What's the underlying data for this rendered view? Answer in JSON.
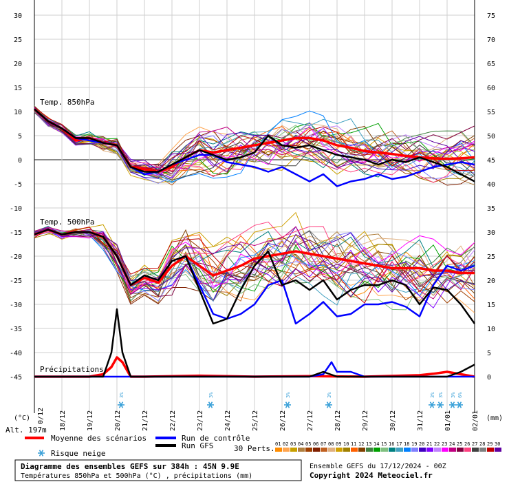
{
  "chart_data": {
    "type": "line",
    "title": "",
    "x_dates": [
      "18/12",
      "19/12",
      "20/12",
      "21/12",
      "22/12",
      "23/12",
      "24/12",
      "25/12",
      "26/12",
      "27/12",
      "28/12",
      "29/12",
      "30/12",
      "31/12",
      "01/01",
      "02/01"
    ],
    "x_label_extra": "0/12",
    "x_range_days": [
      0,
      16
    ],
    "y_left_ticks": [
      30,
      25,
      20,
      15,
      10,
      5,
      0,
      -5,
      -10,
      -15,
      -20,
      -25,
      -30,
      -35,
      -40,
      -45
    ],
    "y_left_range": [
      -45,
      30
    ],
    "y_right_ticks": [
      75,
      70,
      65,
      60,
      55,
      50,
      45,
      40,
      35,
      30,
      25,
      20,
      15,
      10,
      5,
      0
    ],
    "y_right_range": [
      0,
      75
    ],
    "left_axis_unit": "(°C)",
    "right_axis_unit": "(mm)",
    "altitude_label": "Alt. 197m",
    "section_labels": {
      "t850": "Temp. 850hPa",
      "t500": "Temp. 500hPa",
      "precip": "Précipitations"
    },
    "grid": true,
    "reference_line_y": 0,
    "series": [
      {
        "name": "Moyenne des scénarios",
        "color": "#ff0000",
        "panel": "t850",
        "x": [
          0,
          0.5,
          1,
          1.5,
          2,
          2.5,
          3,
          3.5,
          4,
          4.5,
          5,
          5.5,
          6,
          6.5,
          7,
          7.5,
          8,
          8.5,
          9,
          9.5,
          10,
          10.5,
          11,
          11.5,
          12,
          12.5,
          13,
          13.5,
          14,
          14.5,
          15,
          15.5,
          16
        ],
        "values": [
          10.5,
          8,
          6.5,
          4,
          4.5,
          3.5,
          3,
          -1.5,
          -2,
          -2.5,
          -1.5,
          0.5,
          2,
          1.5,
          2,
          2.5,
          3,
          3.5,
          4,
          4.5,
          4.5,
          4,
          3,
          2.5,
          1.8,
          1.5,
          1.2,
          0.8,
          0.5,
          0.3,
          0.2,
          0.3,
          0.5
        ]
      },
      {
        "name": "Run de contrôle",
        "color": "#0000ff",
        "panel": "t850",
        "x": [
          0,
          0.5,
          1,
          1.5,
          2,
          2.5,
          3,
          3.5,
          4,
          4.5,
          5,
          5.5,
          6,
          6.5,
          7,
          7.5,
          8,
          8.5,
          9,
          9.5,
          10,
          10.5,
          11,
          11.5,
          12,
          12.5,
          13,
          13.5,
          14,
          14.5,
          15,
          15.5,
          16
        ],
        "values": [
          10.5,
          8,
          6.5,
          4.5,
          4,
          3.5,
          3,
          -1.5,
          -3,
          -2.5,
          -1,
          0,
          1,
          1,
          -0.5,
          -1,
          -1.5,
          -2.5,
          -1.5,
          -3,
          -4.5,
          -3,
          -5.5,
          -4.5,
          -4,
          -3,
          -4,
          -3.5,
          -2.5,
          -1.5,
          -1,
          -0.5,
          -1
        ]
      },
      {
        "name": "Run GFS",
        "color": "#000000",
        "panel": "t850",
        "x": [
          0,
          0.5,
          1,
          1.5,
          2,
          2.5,
          3,
          3.5,
          4,
          4.5,
          5,
          5.5,
          6,
          6.5,
          7,
          7.5,
          8,
          8.5,
          9,
          9.5,
          10,
          10.5,
          11,
          11.5,
          12,
          12.5,
          13,
          13.5,
          14,
          14.5,
          15,
          15.5,
          16
        ],
        "values": [
          10.5,
          8,
          6.5,
          4.5,
          4.5,
          3.5,
          3,
          -1.5,
          -2.5,
          -2.5,
          -1,
          0.5,
          2,
          1,
          0,
          0.5,
          1.5,
          5,
          3,
          2.5,
          3,
          2,
          1,
          0.5,
          0,
          -1,
          0,
          -0.5,
          0.5,
          -0.5,
          -1.5,
          -3,
          -4.5
        ]
      },
      {
        "name": "Moyenne des scénarios",
        "color": "#ff0000",
        "panel": "t500",
        "x": [
          0,
          0.5,
          1,
          1.5,
          2,
          2.5,
          3,
          3.5,
          4,
          4.5,
          5,
          5.5,
          6,
          6.5,
          7,
          7.5,
          8,
          8.5,
          9,
          9.5,
          10,
          10.5,
          11,
          11.5,
          12,
          12.5,
          13,
          13.5,
          14,
          14.5,
          15,
          15.5,
          16
        ],
        "values": [
          -15.5,
          -14.5,
          -15.5,
          -15,
          -15,
          -16,
          -20,
          -26,
          -24.5,
          -25.5,
          -22,
          -20,
          -22,
          -24,
          -23,
          -22,
          -20.5,
          -20,
          -19.5,
          -19,
          -19.5,
          -20,
          -20.5,
          -21,
          -21.5,
          -22,
          -22.5,
          -22.5,
          -22.5,
          -23,
          -23,
          -23.5,
          -23.5
        ]
      },
      {
        "name": "Run de contrôle",
        "color": "#0000ff",
        "panel": "t500",
        "x": [
          0,
          0.5,
          1,
          1.5,
          2,
          2.5,
          3,
          3.5,
          4,
          4.5,
          5,
          5.5,
          6,
          6.5,
          7,
          7.5,
          8,
          8.5,
          9,
          9.5,
          10,
          10.5,
          11,
          11.5,
          12,
          12.5,
          13,
          13.5,
          14,
          14.5,
          15,
          15.5,
          16
        ],
        "values": [
          -15.5,
          -14.5,
          -15.5,
          -15,
          -15,
          -16,
          -20,
          -26,
          -24,
          -25,
          -21,
          -20,
          -26,
          -32,
          -33,
          -32,
          -30,
          -26,
          -25,
          -34,
          -32,
          -29.5,
          -32.5,
          -32,
          -30,
          -30,
          -29.5,
          -30.5,
          -32.5,
          -26,
          -22,
          -23,
          -22
        ]
      },
      {
        "name": "Run GFS",
        "color": "#000000",
        "panel": "t500",
        "x": [
          0,
          0.5,
          1,
          1.5,
          2,
          2.5,
          3,
          3.5,
          4,
          4.5,
          5,
          5.5,
          6,
          6.5,
          7,
          7.5,
          8,
          8.5,
          9,
          9.5,
          10,
          10.5,
          11,
          11.5,
          12,
          12.5,
          13,
          13.5,
          14,
          14.5,
          15,
          15.5,
          16
        ],
        "values": [
          -15.5,
          -14.5,
          -15.5,
          -15,
          -15,
          -16,
          -20,
          -26,
          -24,
          -25,
          -21,
          -20,
          -27,
          -34,
          -33,
          -27,
          -22,
          -19,
          -26,
          -25,
          -27,
          -25,
          -29,
          -27,
          -26,
          -26,
          -25,
          -26,
          -30,
          -26.5,
          -27,
          -30,
          -34
        ]
      },
      {
        "name": "Moyenne des scénarios",
        "color": "#ff0000",
        "panel": "precip",
        "x": [
          0,
          1,
          2,
          2.5,
          2.8,
          3.0,
          3.2,
          3.5,
          4,
          6,
          8,
          10,
          12,
          14,
          14.5,
          15,
          15.5,
          16
        ],
        "values": [
          0,
          0,
          0,
          0.5,
          2,
          4,
          3,
          0,
          0,
          0.2,
          0,
          0.1,
          0,
          0.3,
          0.6,
          1,
          0.5,
          0
        ]
      },
      {
        "name": "Run de contrôle",
        "color": "#0000ff",
        "panel": "precip",
        "x": [
          0,
          3,
          6,
          8,
          10,
          10.5,
          10.8,
          11,
          11.5,
          12,
          14,
          16
        ],
        "values": [
          0,
          0,
          0,
          0,
          0,
          0.5,
          3,
          1,
          1,
          0,
          0,
          0
        ]
      },
      {
        "name": "Run GFS",
        "color": "#000000",
        "panel": "precip",
        "x": [
          0,
          2.5,
          2.8,
          3.0,
          3.2,
          3.5,
          6,
          10,
          10.5,
          11,
          12,
          14,
          15,
          15.5,
          16
        ],
        "values": [
          0,
          0,
          5,
          14,
          5,
          0,
          0,
          0,
          1,
          0,
          0,
          0,
          0,
          1,
          2.5
        ]
      }
    ],
    "snow_markers": {
      "label": "3%",
      "label_6": "6%",
      "positions_days": [
        3.15,
        6.4,
        9.2,
        10.7,
        14.45,
        14.75,
        15.2,
        15.45
      ],
      "labels": [
        "3%",
        "3%",
        "3%",
        "3%",
        "3%",
        "3%",
        "3%",
        "6%"
      ]
    }
  },
  "legend": {
    "mean": "Moyenne des scénarios",
    "control": "Run de contrôle",
    "gfs": "Run GFS",
    "snow": "Risque neige",
    "perts": "30 Perts.",
    "pert_numbers": [
      "01",
      "02",
      "03",
      "04",
      "05",
      "06",
      "07",
      "08",
      "09",
      "10",
      "11",
      "12",
      "13",
      "14",
      "15",
      "16",
      "17",
      "18",
      "19",
      "20",
      "21",
      "22",
      "23",
      "24",
      "25",
      "26",
      "27",
      "28",
      "29",
      "30"
    ],
    "pert_colors": [
      "#ff8c00",
      "#ffa54f",
      "#c8a000",
      "#b08040",
      "#a04000",
      "#802000",
      "#c06020",
      "#e0b080",
      "#d0a000",
      "#a08000",
      "#ff6000",
      "#804000",
      "#408040",
      "#00a000",
      "#80c080",
      "#008080",
      "#40a0c0",
      "#0080ff",
      "#8080ff",
      "#4000c0",
      "#8000ff",
      "#c080ff",
      "#ff00ff",
      "#c00080",
      "#800040",
      "#ff4080",
      "#404040",
      "#808080",
      "#c00000",
      "#6000a0"
    ]
  },
  "footer": {
    "title": "Diagramme des ensembles GEFS sur 384h : 45N 9.9E",
    "subtitle": "Températures 850hPa et 500hPa (°C) , précipitations (mm)",
    "run_info": "Ensemble GEFS du 17/12/2024 - 00Z",
    "copyright": "Copyright 2024 Meteociel.fr"
  }
}
